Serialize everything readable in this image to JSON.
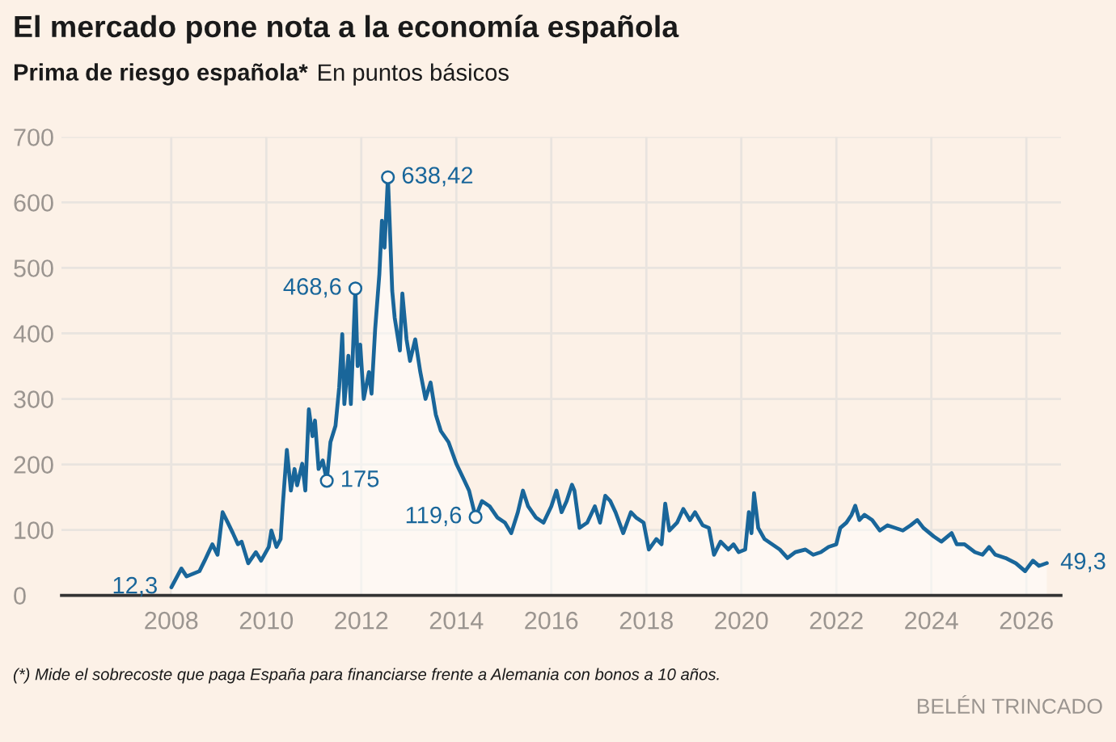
{
  "chart_data": {
    "type": "area",
    "title": "El mercado pone nota a la economía española",
    "subtitle": "Prima de riesgo española* En puntos básicos",
    "x": [
      "2008-01-02",
      "2008-03-19",
      "2008-04-28",
      "2008-08-05",
      "2008-09-14",
      "2008-11-12",
      "2008-12-22",
      "2009-01-30",
      "2009-03-11",
      "2009-04-19",
      "2009-05-28",
      "2009-06-25",
      "2009-08-15",
      "2009-10-13",
      "2009-11-22",
      "2010-01-20",
      "2010-02-09",
      "2010-03-20",
      "2010-04-21",
      "2010-05-07",
      "2010-06-08",
      "2010-07-09",
      "2010-08-06",
      "2010-08-26",
      "2010-10-04",
      "2010-10-28",
      "2010-11-24",
      "2010-12-22",
      "2011-01-10",
      "2011-02-07",
      "2011-03-11",
      "2011-04-11",
      "2011-05-09",
      "2011-06-17",
      "2011-07-15",
      "2011-08-08",
      "2011-08-24",
      "2011-09-24",
      "2011-10-13",
      "2011-11-17",
      "2011-12-04",
      "2011-12-24",
      "2012-01-20",
      "2012-02-29",
      "2012-03-20",
      "2012-04-17",
      "2012-05-19",
      "2012-06-08",
      "2012-06-28",
      "2012-07-24",
      "2012-08-06",
      "2012-08-26",
      "2012-09-14",
      "2012-10-24",
      "2012-11-12",
      "2012-12-14",
      "2013-01-10",
      "2013-02-19",
      "2013-03-30",
      "2013-05-09",
      "2013-06-17",
      "2013-07-27",
      "2013-09-04",
      "2013-11-02",
      "2014-01-01",
      "2014-02-28",
      "2014-04-09",
      "2014-05-29",
      "2014-07-17",
      "2014-09-14",
      "2014-11-12",
      "2015-01-10",
      "2015-02-27",
      "2015-04-19",
      "2015-05-28",
      "2015-07-07",
      "2015-09-04",
      "2015-11-02",
      "2016-01-01",
      "2016-02-10",
      "2016-03-20",
      "2016-04-28",
      "2016-06-08",
      "2016-06-27",
      "2016-08-05",
      "2016-10-03",
      "2016-12-01",
      "2017-01-10",
      "2017-02-19",
      "2017-03-30",
      "2017-05-09",
      "2017-07-07",
      "2017-09-04",
      "2017-10-13",
      "2017-12-11",
      "2018-01-20",
      "2018-03-19",
      "2018-04-28",
      "2018-05-26",
      "2018-06-27",
      "2018-08-25",
      "2018-10-12",
      "2018-12-02",
      "2019-01-10",
      "2019-03-10",
      "2019-04-27",
      "2019-06-05",
      "2019-07-26",
      "2019-09-24",
      "2019-11-02",
      "2019-12-12",
      "2020-01-31",
      "2020-02-28",
      "2020-03-19",
      "2020-04-08",
      "2020-05-10",
      "2020-06-27",
      "2020-08-25",
      "2020-10-23",
      "2020-12-21",
      "2021-02-19",
      "2021-05-08",
      "2021-07-07",
      "2021-09-04",
      "2021-11-02",
      "2021-12-31",
      "2022-01-31",
      "2022-03-19",
      "2022-04-28",
      "2022-05-26",
      "2022-06-27",
      "2022-08-05",
      "2022-10-03",
      "2022-12-01",
      "2023-01-29",
      "2023-03-29",
      "2023-05-27",
      "2023-07-26",
      "2023-09-15",
      "2023-11-01",
      "2024-01-19",
      "2024-03-18",
      "2024-06-05",
      "2024-07-15",
      "2024-09-12",
      "2024-12-01",
      "2025-01-29",
      "2025-03-20",
      "2025-05-07",
      "2025-07-25",
      "2025-10-12",
      "2025-12-22",
      "2026-02-20",
      "2026-04-08",
      "2026-06-07"
    ],
    "series": [
      {
        "color": "#19669a",
        "values": [
          12.3,
          41,
          29,
          37,
          53,
          78,
          62,
          127,
          111,
          95,
          78,
          82,
          49,
          66,
          53,
          74,
          99,
          74,
          86,
          136,
          222,
          160,
          193,
          168,
          201,
          160,
          284,
          243,
          267,
          193,
          206,
          175,
          234,
          259,
          317,
          399,
          292,
          366,
          292,
          468.6,
          350,
          383,
          300,
          341,
          308,
          407,
          490,
          572,
          531,
          638.42,
          572,
          465,
          424,
          374,
          461,
          391,
          358,
          391,
          341,
          300,
          325,
          276,
          251,
          234,
          201,
          177,
          160,
          119.6,
          144,
          136,
          119,
          111,
          95,
          127,
          160,
          136,
          119,
          111,
          136,
          160,
          127,
          144,
          169,
          160,
          103,
          111,
          136,
          111,
          152,
          144,
          127,
          95,
          127,
          119,
          111,
          70,
          86,
          78,
          140,
          99,
          111,
          132,
          115,
          127,
          107,
          103,
          62,
          82,
          70,
          78,
          66,
          70,
          127,
          95,
          156,
          103,
          86,
          78,
          70,
          57,
          66,
          70,
          62,
          66,
          74,
          78,
          103,
          111,
          123,
          137,
          115,
          123,
          115,
          99,
          107,
          103,
          99,
          107,
          115,
          103,
          90,
          82,
          95,
          78,
          78,
          66,
          62,
          74,
          62,
          57,
          49,
          37,
          53,
          45,
          49.3
        ]
      }
    ],
    "xlim": [
      "2005-09-09",
      "2026-09-24"
    ],
    "xticks": [
      {
        "value": "2008-01-01",
        "label": "2008"
      },
      {
        "value": "2010-01-01",
        "label": "2010"
      },
      {
        "value": "2012-01-01",
        "label": "2012"
      },
      {
        "value": "2014-01-01",
        "label": "2014"
      },
      {
        "value": "2016-01-01",
        "label": "2016"
      },
      {
        "value": "2018-01-01",
        "label": "2018"
      },
      {
        "value": "2020-01-01",
        "label": "2020"
      },
      {
        "value": "2022-01-01",
        "label": "2022"
      },
      {
        "value": "2024-01-01",
        "label": "2024"
      },
      {
        "value": "2026-01-01",
        "label": "2026"
      }
    ],
    "ylim": [
      0,
      700
    ],
    "yticks": [
      0,
      100,
      200,
      300,
      400,
      500,
      600,
      700
    ],
    "grid": true,
    "annotations": [
      {
        "text": "12,3",
        "x": "2008-01-02",
        "y": 12.3
      },
      {
        "text": "175",
        "x": "2011-04-11",
        "y": 175
      },
      {
        "text": "468,6",
        "x": "2011-11-17",
        "y": 468.6
      },
      {
        "text": "638,42",
        "x": "2012-07-24",
        "y": 638.42
      },
      {
        "text": "119,6",
        "x": "2014-05-29",
        "y": 119.6
      },
      {
        "text": "49,3",
        "x": "2026-06-07",
        "y": 49.3
      },
      "(*) Mide el sobrecoste que paga España para financiarse frente a Alemania con bonos a 10 años.",
      "BELÉN TRINCADO"
    ]
  }
}
